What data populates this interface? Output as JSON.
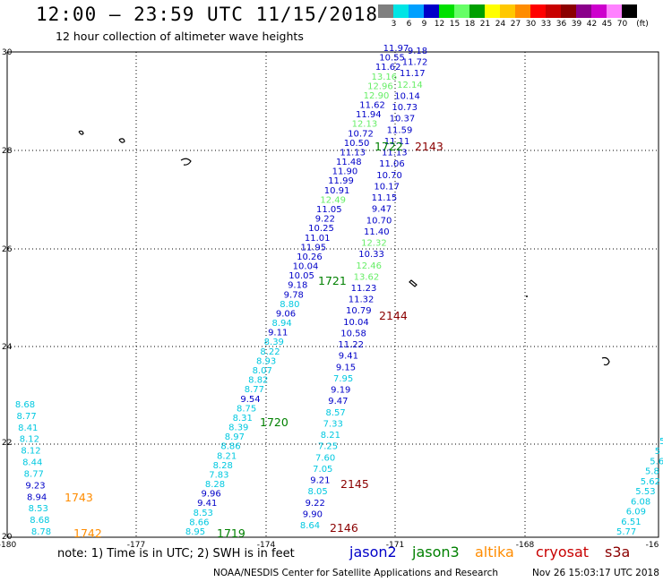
{
  "header": {
    "title": "12:00 – 23:59 UTC 11/15/2018",
    "subtitle": "12 hour collection of altimeter wave heights"
  },
  "color_scale": {
    "unit": "(ft)",
    "levels": [
      {
        "label": "3",
        "color": "#7f7f7f"
      },
      {
        "label": "6",
        "color": "#00e5e5"
      },
      {
        "label": "9",
        "color": "#00a0ff"
      },
      {
        "label": "12",
        "color": "#0000c8"
      },
      {
        "label": "15",
        "color": "#00e000"
      },
      {
        "label": "18",
        "color": "#66ff66"
      },
      {
        "label": "21",
        "color": "#00a000"
      },
      {
        "label": "24",
        "color": "#ffff00"
      },
      {
        "label": "27",
        "color": "#ffc800"
      },
      {
        "label": "30",
        "color": "#ff8c00"
      },
      {
        "label": "33",
        "color": "#ff0000"
      },
      {
        "label": "36",
        "color": "#c80000"
      },
      {
        "label": "39",
        "color": "#8b0000"
      },
      {
        "label": "42",
        "color": "#8b008b"
      },
      {
        "label": "45",
        "color": "#cd00cd"
      },
      {
        "label": "70",
        "color": "#ff82ff"
      },
      {
        "label": "",
        "color": "#000000"
      }
    ]
  },
  "map": {
    "lon_labels": [
      "-180",
      "-177",
      "-174",
      "-171",
      "-168",
      "-16"
    ],
    "lat_labels": [
      "30",
      "28",
      "26",
      "24",
      "22",
      "20"
    ]
  },
  "tracks": [
    {
      "id": "t_left",
      "values": [
        [
          "8.78",
          "#00c8e0"
        ],
        [
          "8.68",
          "#00c8e0"
        ],
        [
          "8.53",
          "#00c8e0"
        ],
        [
          "8.94",
          "#0000c8"
        ],
        [
          "9.23",
          "#0000c8"
        ],
        [
          "8.77",
          "#00c8e0"
        ],
        [
          "8.44",
          "#00c8e0"
        ],
        [
          "8.12",
          "#00c8e0"
        ],
        [
          "8.12",
          "#00c8e0"
        ],
        [
          "8.41",
          "#00c8e0"
        ],
        [
          "8.77",
          "#00c8e0"
        ],
        [
          "8.68",
          "#00c8e0"
        ]
      ]
    },
    {
      "id": "t_1720",
      "values": [
        [
          "8.95",
          "#00c8e0"
        ],
        [
          "8.66",
          "#00c8e0"
        ],
        [
          "8.53",
          "#00c8e0"
        ],
        [
          "9.41",
          "#0000c8"
        ],
        [
          "9.96",
          "#0000c8"
        ],
        [
          "8.28",
          "#00c8e0"
        ],
        [
          "7.83",
          "#00c8e0"
        ],
        [
          "8.28",
          "#00c8e0"
        ],
        [
          "8.21",
          "#00c8e0"
        ],
        [
          "8.86",
          "#00c8e0"
        ],
        [
          "8.97",
          "#00c8e0"
        ],
        [
          "8.39",
          "#00c8e0"
        ],
        [
          "8.31",
          "#00c8e0"
        ],
        [
          "8.75",
          "#00c8e0"
        ],
        [
          "9.54",
          "#0000c8"
        ],
        [
          "8.77",
          "#00c8e0"
        ],
        [
          "8.82",
          "#00c8e0"
        ],
        [
          "8.07",
          "#00c8e0"
        ],
        [
          "8.93",
          "#00c8e0"
        ],
        [
          "8.22",
          "#00c8e0"
        ],
        [
          "8.39",
          "#00c8e0"
        ],
        [
          "9.11",
          "#0000c8"
        ],
        [
          "8.94",
          "#00c8e0"
        ],
        [
          "9.06",
          "#0000c8"
        ],
        [
          "8.80",
          "#00c8e0"
        ],
        [
          "9.78",
          "#0000c8"
        ],
        [
          "9.18",
          "#0000c8"
        ],
        [
          "10.05",
          "#0000c8"
        ],
        [
          "10.04",
          "#0000c8"
        ],
        [
          "10.26",
          "#0000c8"
        ],
        [
          "11.95",
          "#0000c8"
        ],
        [
          "11.01",
          "#0000c8"
        ],
        [
          "10.25",
          "#0000c8"
        ],
        [
          "9.22",
          "#0000c8"
        ],
        [
          "11.05",
          "#0000c8"
        ],
        [
          "12.49",
          "#66ee66"
        ],
        [
          "10.91",
          "#0000c8"
        ],
        [
          "11.99",
          "#0000c8"
        ],
        [
          "11.90",
          "#0000c8"
        ],
        [
          "11.48",
          "#0000c8"
        ],
        [
          "11.13",
          "#0000c8"
        ],
        [
          "10.50",
          "#0000c8"
        ],
        [
          "10.72",
          "#0000c8"
        ],
        [
          "12.13",
          "#66ee66"
        ],
        [
          "11.94",
          "#0000c8"
        ],
        [
          "11.62",
          "#0000c8"
        ],
        [
          "12.90",
          "#66ee66"
        ],
        [
          "12.96",
          "#66ee66"
        ],
        [
          "13.16",
          "#66ee66"
        ],
        [
          "11.62",
          "#0000c8"
        ],
        [
          "10.55",
          "#0000c8"
        ],
        [
          "11.97",
          "#0000c8"
        ]
      ]
    },
    {
      "id": "t_2145",
      "values": [
        [
          "8.64",
          "#00c8e0"
        ],
        [
          "9.90",
          "#0000c8"
        ],
        [
          "9.22",
          "#0000c8"
        ],
        [
          "8.05",
          "#00c8e0"
        ],
        [
          "9.21",
          "#0000c8"
        ],
        [
          "7.05",
          "#00c8e0"
        ],
        [
          "7.60",
          "#00c8e0"
        ],
        [
          "7.25",
          "#00c8e0"
        ],
        [
          "8.21",
          "#00c8e0"
        ],
        [
          "7.33",
          "#00c8e0"
        ],
        [
          "8.57",
          "#00c8e0"
        ],
        [
          "9.47",
          "#0000c8"
        ],
        [
          "9.19",
          "#0000c8"
        ],
        [
          "7.95",
          "#00c8e0"
        ],
        [
          "9.15",
          "#0000c8"
        ],
        [
          "9.41",
          "#0000c8"
        ],
        [
          "11.22",
          "#0000c8"
        ],
        [
          "10.58",
          "#0000c8"
        ],
        [
          "10.04",
          "#0000c8"
        ],
        [
          "10.79",
          "#0000c8"
        ],
        [
          "11.32",
          "#0000c8"
        ],
        [
          "11.23",
          "#0000c8"
        ],
        [
          "13.62",
          "#66ee66"
        ],
        [
          "12.46",
          "#66ee66"
        ],
        [
          "10.33",
          "#0000c8"
        ],
        [
          "12.32",
          "#66ee66"
        ],
        [
          "11.40",
          "#0000c8"
        ],
        [
          "10.70",
          "#0000c8"
        ],
        [
          "9.47",
          "#0000c8"
        ],
        [
          "11.15",
          "#0000c8"
        ],
        [
          "10.17",
          "#0000c8"
        ],
        [
          "10.70",
          "#0000c8"
        ],
        [
          "11.06",
          "#0000c8"
        ],
        [
          "11.13",
          "#0000c8"
        ],
        [
          "11.11",
          "#0000c8"
        ],
        [
          "11.59",
          "#0000c8"
        ],
        [
          "10.37",
          "#0000c8"
        ],
        [
          "10.73",
          "#0000c8"
        ],
        [
          "10.14",
          "#0000c8"
        ],
        [
          "12.14",
          "#66ee66"
        ],
        [
          "11.17",
          "#0000c8"
        ],
        [
          "11.72",
          "#0000c8"
        ],
        [
          "9.18",
          "#0000c8"
        ]
      ]
    },
    {
      "id": "t_right",
      "values": [
        [
          "5.77",
          "#00c8e0"
        ],
        [
          "6.51",
          "#00c8e0"
        ],
        [
          "6.09",
          "#00c8e0"
        ],
        [
          "6.08",
          "#00c8e0"
        ],
        [
          "5.53",
          "#00c8e0"
        ],
        [
          "5.62",
          "#00c8e0"
        ],
        [
          "5.8",
          "#00c8e0"
        ],
        [
          "5.6",
          "#00c8e0"
        ],
        [
          "5",
          "#00c8e0"
        ],
        [
          "5",
          "#00c8e0"
        ]
      ]
    }
  ],
  "pass_labels": [
    {
      "text": "1743",
      "color": "#ff8c00"
    },
    {
      "text": "1742",
      "color": "#ff8c00"
    },
    {
      "text": "1720",
      "color": "#008000"
    },
    {
      "text": "1719",
      "color": "#008000"
    },
    {
      "text": "1721",
      "color": "#008000"
    },
    {
      "text": "1722",
      "color": "#008000"
    },
    {
      "text": "2143",
      "color": "#8b0000"
    },
    {
      "text": "2144",
      "color": "#8b0000"
    },
    {
      "text": "2145",
      "color": "#8b0000"
    },
    {
      "text": "2146",
      "color": "#8b0000"
    }
  ],
  "footer": {
    "note": "note:  1) Time is in UTC;  2) SWH is in feet",
    "satellites": [
      {
        "name": "jason2",
        "color": "#0000c8"
      },
      {
        "name": "jason3",
        "color": "#008000"
      },
      {
        "name": "altika",
        "color": "#ff8c00"
      },
      {
        "name": "cryosat",
        "color": "#c80000"
      },
      {
        "name": "s3a",
        "color": "#8b0000"
      }
    ],
    "credit": "NOAA/NESDIS Center for Satellite Applications and Research",
    "timestamp": "Nov 26 15:03:17 UTC 2018"
  }
}
